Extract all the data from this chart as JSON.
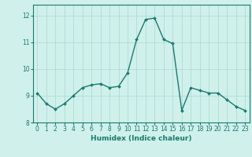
{
  "x": [
    0,
    1,
    2,
    3,
    4,
    5,
    6,
    7,
    8,
    9,
    10,
    11,
    12,
    13,
    14,
    15,
    16,
    17,
    18,
    19,
    20,
    21,
    22,
    23
  ],
  "y": [
    9.1,
    8.7,
    8.5,
    8.7,
    9.0,
    9.3,
    9.4,
    9.45,
    9.3,
    9.35,
    9.85,
    11.1,
    11.85,
    11.9,
    11.1,
    10.95,
    8.45,
    9.3,
    9.2,
    9.1,
    9.1,
    8.85,
    8.6,
    8.45
  ],
  "line_color": "#1a7a6e",
  "marker": "D",
  "marker_size": 2.0,
  "line_width": 1.0,
  "xlabel": "Humidex (Indice chaleur)",
  "xlim": [
    -0.5,
    23.5
  ],
  "ylim": [
    8.0,
    12.4
  ],
  "yticks": [
    8,
    9,
    10,
    11,
    12
  ],
  "xticks": [
    0,
    1,
    2,
    3,
    4,
    5,
    6,
    7,
    8,
    9,
    10,
    11,
    12,
    13,
    14,
    15,
    16,
    17,
    18,
    19,
    20,
    21,
    22,
    23
  ],
  "bg_color": "#cff0eb",
  "grid_color": "#aad8d0",
  "tick_fontsize": 5.5,
  "xlabel_fontsize": 6.5
}
